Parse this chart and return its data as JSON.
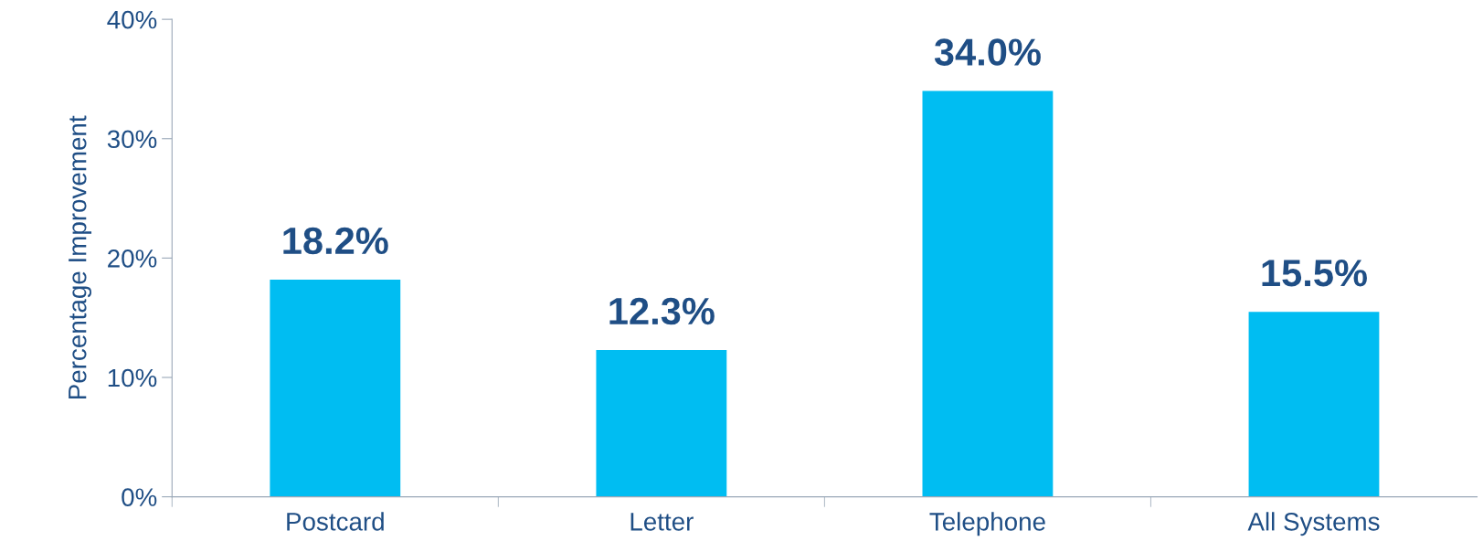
{
  "chart_data": {
    "type": "bar",
    "ylabel": "Percentage Improvement",
    "categories": [
      "Postcard",
      "Letter",
      "Telephone",
      "All Systems"
    ],
    "values": [
      18.2,
      12.3,
      34.0,
      15.5
    ],
    "value_labels": [
      "18.2%",
      "12.3%",
      "34.0%",
      "15.5%"
    ],
    "color": "#00bdf2",
    "ylim": [
      0,
      40
    ],
    "yticks": [
      {
        "value": 0,
        "label": "0%"
      },
      {
        "value": 10,
        "label": "10%"
      },
      {
        "value": 20,
        "label": "20%"
      },
      {
        "value": 30,
        "label": "30%"
      },
      {
        "value": 40,
        "label": "40%"
      }
    ],
    "grid": false,
    "legend": false
  }
}
